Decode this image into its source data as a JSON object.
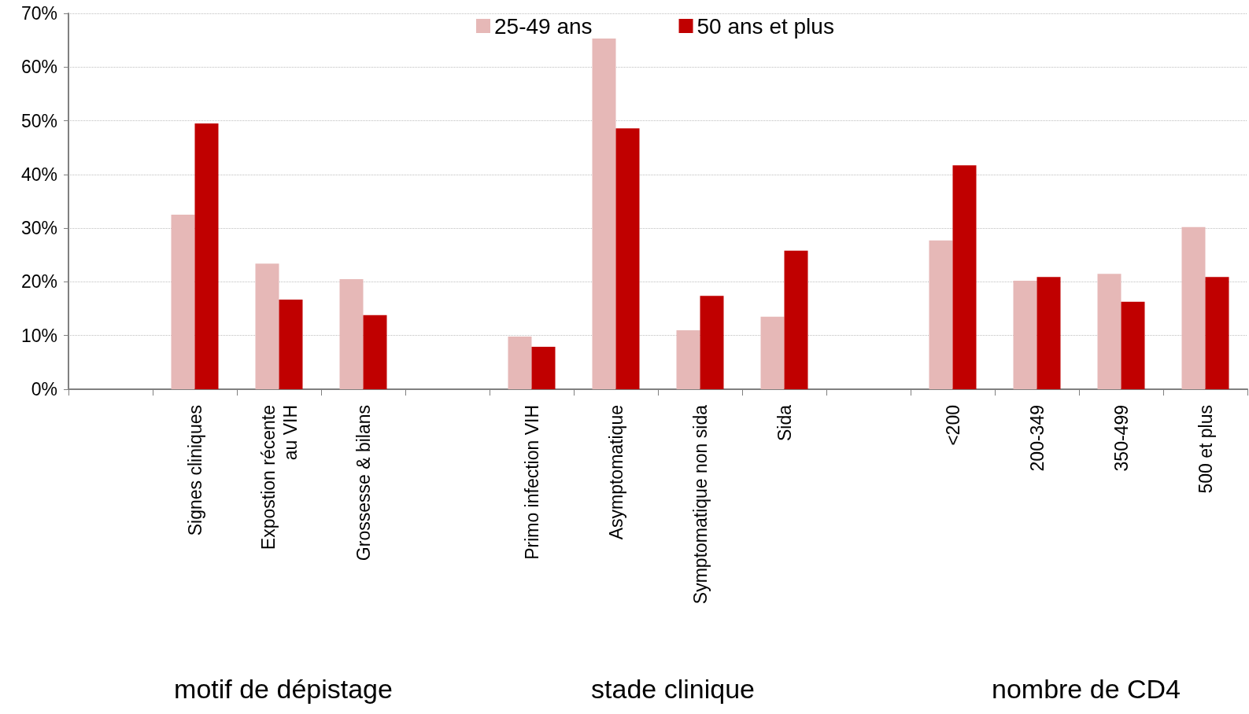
{
  "chart_data": {
    "type": "bar",
    "categories": [
      null,
      "Signes cliniques",
      "Expostion récente\nau VIH",
      "Grossesse & bilans",
      null,
      "Primo infection VIH",
      "Asymptomatique",
      "Symptomatique non sida",
      "Sida",
      null,
      "<200",
      "200-349",
      "350-499",
      "500 et plus"
    ],
    "series": [
      {
        "name": "25-49 ans",
        "color": "#e6b8b7",
        "values": [
          null,
          32.5,
          23.4,
          20.5,
          null,
          9.8,
          65.3,
          11.0,
          13.5,
          null,
          27.7,
          20.2,
          21.5,
          30.2
        ]
      },
      {
        "name": "50 ans et plus",
        "color": "#c00000",
        "values": [
          null,
          49.5,
          16.7,
          13.8,
          null,
          7.9,
          48.6,
          17.4,
          25.8,
          null,
          41.7,
          20.9,
          16.3,
          20.9
        ]
      }
    ],
    "ylim": [
      0,
      70
    ],
    "yticks": [
      {
        "value": 0,
        "label": "0%"
      },
      {
        "value": 10,
        "label": "10%"
      },
      {
        "value": 20,
        "label": "20%"
      },
      {
        "value": 30,
        "label": "30%"
      },
      {
        "value": 40,
        "label": "40%"
      },
      {
        "value": 50,
        "label": "50%"
      },
      {
        "value": 60,
        "label": "60%"
      },
      {
        "value": 70,
        "label": "70%"
      }
    ],
    "annotations": [
      "motif de dépistage",
      "stade clinique",
      "nombre de CD4"
    ],
    "grid": "y",
    "legend": "top"
  }
}
